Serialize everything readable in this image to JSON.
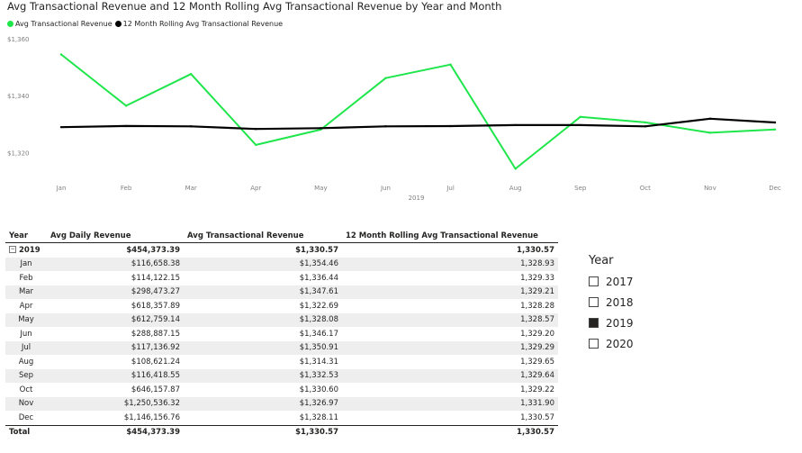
{
  "chart": {
    "title": "Avg Transactional Revenue and 12 Month Rolling Avg Transactional Revenue by Year and Month",
    "legend": [
      {
        "label": "Avg Transactional Revenue",
        "color": "#1ee64b"
      },
      {
        "label": "12 Month Rolling Avg Transactional Revenue",
        "color": "#000000"
      }
    ],
    "x_group_label": "2019"
  },
  "chart_data": {
    "type": "line",
    "title": "Avg Transactional Revenue and 12 Month Rolling Avg Transactional Revenue by Year and Month",
    "categories": [
      "Jan",
      "Feb",
      "Mar",
      "Apr",
      "May",
      "Jun",
      "Jul",
      "Aug",
      "Sep",
      "Oct",
      "Nov",
      "Dec"
    ],
    "y_ticks": [
      1320,
      1340,
      1360
    ],
    "y_tick_labels": [
      "$1,320",
      "$1,340",
      "$1,360"
    ],
    "ylim": [
      1310,
      1360
    ],
    "grid": false,
    "legend_position": "top-left",
    "series": [
      {
        "name": "Avg Transactional Revenue",
        "color": "#1ee64b",
        "values": [
          1354.46,
          1336.44,
          1347.61,
          1322.69,
          1328.08,
          1346.17,
          1350.91,
          1314.31,
          1332.53,
          1330.6,
          1326.97,
          1328.11
        ]
      },
      {
        "name": "12 Month Rolling Avg Transactional Revenue",
        "color": "#000000",
        "values": [
          1328.93,
          1329.33,
          1329.21,
          1328.28,
          1328.57,
          1329.2,
          1329.29,
          1329.65,
          1329.64,
          1329.22,
          1331.9,
          1330.57
        ]
      }
    ]
  },
  "table": {
    "headers": [
      "Year",
      "Avg Daily Revenue",
      "Avg Transactional Revenue",
      "12 Month Rolling Avg Transactional Revenue"
    ],
    "group": {
      "label": "2019",
      "daily": "$454,373.39",
      "trans": "$1,330.57",
      "rolling": "1,330.57"
    },
    "rows": [
      {
        "label": "Jan",
        "daily": "$116,658.38",
        "trans": "$1,354.46",
        "rolling": "1,328.93"
      },
      {
        "label": "Feb",
        "daily": "$114,122.15",
        "trans": "$1,336.44",
        "rolling": "1,329.33"
      },
      {
        "label": "Mar",
        "daily": "$298,473.27",
        "trans": "$1,347.61",
        "rolling": "1,329.21"
      },
      {
        "label": "Apr",
        "daily": "$618,357.89",
        "trans": "$1,322.69",
        "rolling": "1,328.28"
      },
      {
        "label": "May",
        "daily": "$612,759.14",
        "trans": "$1,328.08",
        "rolling": "1,328.57"
      },
      {
        "label": "Jun",
        "daily": "$288,887.15",
        "trans": "$1,346.17",
        "rolling": "1,329.20"
      },
      {
        "label": "Jul",
        "daily": "$117,136.92",
        "trans": "$1,350.91",
        "rolling": "1,329.29"
      },
      {
        "label": "Aug",
        "daily": "$108,621.24",
        "trans": "$1,314.31",
        "rolling": "1,329.65"
      },
      {
        "label": "Sep",
        "daily": "$116,418.55",
        "trans": "$1,332.53",
        "rolling": "1,329.64"
      },
      {
        "label": "Oct",
        "daily": "$646,157.87",
        "trans": "$1,330.60",
        "rolling": "1,329.22"
      },
      {
        "label": "Nov",
        "daily": "$1,250,536.32",
        "trans": "$1,326.97",
        "rolling": "1,331.90"
      },
      {
        "label": "Dec",
        "daily": "$1,146,156.76",
        "trans": "$1,328.11",
        "rolling": "1,330.57"
      }
    ],
    "total": {
      "label": "Total",
      "daily": "$454,373.39",
      "trans": "$1,330.57",
      "rolling": "1,330.57"
    }
  },
  "slicer": {
    "title": "Year",
    "options": [
      {
        "label": "2017",
        "checked": false
      },
      {
        "label": "2018",
        "checked": false
      },
      {
        "label": "2019",
        "checked": true
      },
      {
        "label": "2020",
        "checked": false
      }
    ]
  }
}
